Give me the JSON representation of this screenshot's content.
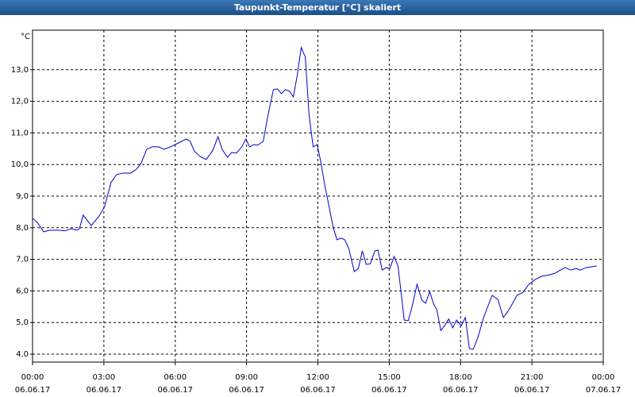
{
  "chart_data": {
    "type": "line",
    "title": "Taupunkt-Temperatur [°C] skaliert",
    "ylabel": "°C",
    "xlim": [
      0,
      24
    ],
    "ylim": [
      3.75,
      14.25
    ],
    "xticks": [
      {
        "value": 0,
        "label": "00:00",
        "date": "06.06.17"
      },
      {
        "value": 3,
        "label": "03:00",
        "date": "06.06.17"
      },
      {
        "value": 6,
        "label": "06:00",
        "date": "06.06.17"
      },
      {
        "value": 9,
        "label": "09:00",
        "date": "06.06.17"
      },
      {
        "value": 12,
        "label": "12:00",
        "date": "06.06.17"
      },
      {
        "value": 15,
        "label": "15:00",
        "date": "06.06.17"
      },
      {
        "value": 18,
        "label": "18:00",
        "date": "06.06.17"
      },
      {
        "value": 21,
        "label": "21:00",
        "date": "06.06.17"
      },
      {
        "value": 24,
        "label": "00:00",
        "date": "07.06.17"
      }
    ],
    "yticks": [
      {
        "value": 4,
        "label": "4,0"
      },
      {
        "value": 5,
        "label": "5,0"
      },
      {
        "value": 6,
        "label": "6,0"
      },
      {
        "value": 7,
        "label": "7,0"
      },
      {
        "value": 8,
        "label": "8,0"
      },
      {
        "value": 9,
        "label": "9,0"
      },
      {
        "value": 10,
        "label": "10,0"
      },
      {
        "value": 11,
        "label": "11,0"
      },
      {
        "value": 12,
        "label": "12,0"
      },
      {
        "value": 13,
        "label": "13,0"
      }
    ],
    "grid": true,
    "series": [
      {
        "name": "Taupunkt",
        "color": "#0000cc",
        "x": [
          0,
          0.2,
          0.47,
          0.7,
          1.13,
          1.37,
          1.63,
          1.87,
          1.97,
          2.13,
          2.47,
          2.8,
          3.03,
          3.3,
          3.53,
          3.8,
          4.13,
          4.37,
          4.57,
          4.8,
          5.03,
          5.3,
          5.53,
          5.8,
          6.13,
          6.47,
          6.63,
          6.8,
          7.03,
          7.3,
          7.57,
          7.8,
          7.97,
          8.2,
          8.37,
          8.57,
          8.8,
          8.97,
          9.13,
          9.3,
          9.47,
          9.7,
          9.9,
          10.13,
          10.3,
          10.47,
          10.63,
          10.8,
          10.97,
          11.13,
          11.3,
          11.47,
          11.63,
          11.8,
          11.97,
          12.13,
          12.3,
          12.47,
          12.63,
          12.8,
          12.97,
          13.13,
          13.3,
          13.53,
          13.7,
          13.87,
          14.03,
          14.2,
          14.4,
          14.53,
          14.7,
          14.87,
          15.03,
          15.2,
          15.37,
          15.63,
          15.8,
          15.97,
          16.17,
          16.37,
          16.53,
          16.7,
          16.87,
          17.0,
          17.17,
          17.33,
          17.5,
          17.67,
          17.83,
          18.03,
          18.2,
          18.37,
          18.53,
          18.73,
          18.97,
          19.13,
          19.33,
          19.57,
          19.8,
          19.97,
          20.13,
          20.37,
          20.63,
          20.87,
          21.13,
          21.4,
          21.73,
          21.97,
          22.2,
          22.4,
          22.63,
          22.87,
          23.03,
          23.3,
          23.47,
          23.73
        ],
        "values": [
          8.3,
          8.17,
          7.87,
          7.92,
          7.92,
          7.9,
          7.97,
          7.92,
          7.97,
          8.4,
          8.07,
          8.37,
          8.67,
          9.43,
          9.68,
          9.73,
          9.73,
          9.85,
          10.05,
          10.48,
          10.56,
          10.56,
          10.48,
          10.56,
          10.68,
          10.81,
          10.73,
          10.43,
          10.26,
          10.16,
          10.43,
          10.88,
          10.48,
          10.23,
          10.38,
          10.36,
          10.56,
          10.81,
          10.56,
          10.63,
          10.61,
          10.73,
          11.56,
          12.37,
          12.39,
          12.24,
          12.37,
          12.32,
          12.14,
          12.82,
          13.7,
          13.4,
          11.56,
          10.56,
          10.63,
          10.05,
          9.3,
          8.67,
          8.05,
          7.62,
          7.67,
          7.62,
          7.34,
          6.61,
          6.71,
          7.27,
          6.84,
          6.86,
          7.27,
          7.29,
          6.66,
          6.74,
          6.71,
          7.09,
          6.79,
          5.08,
          5.06,
          5.53,
          6.21,
          5.71,
          5.61,
          5.98,
          5.58,
          5.41,
          4.75,
          4.9,
          5.11,
          4.83,
          5.08,
          4.9,
          5.16,
          4.18,
          4.15,
          4.53,
          5.16,
          5.48,
          5.86,
          5.73,
          5.16,
          5.33,
          5.53,
          5.86,
          5.96,
          6.21,
          6.36,
          6.46,
          6.51,
          6.56,
          6.66,
          6.74,
          6.66,
          6.71,
          6.66,
          6.74,
          6.76,
          6.79
        ]
      }
    ]
  }
}
